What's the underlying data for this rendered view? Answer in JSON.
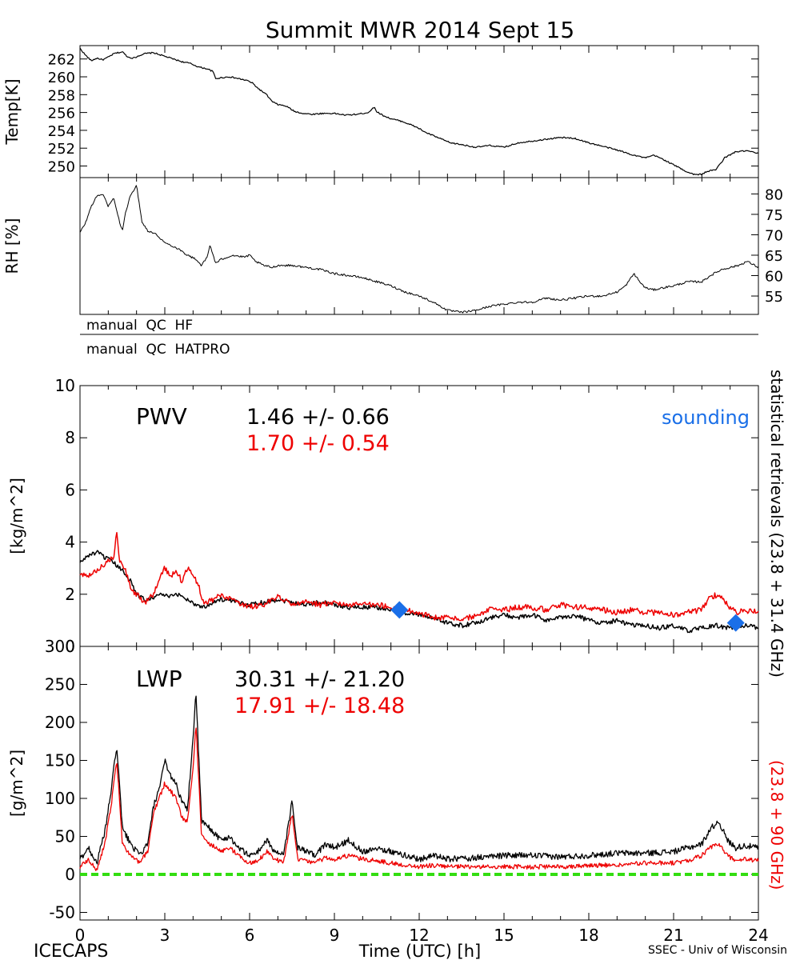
{
  "figure": {
    "title": "Summit MWR 2014 Sept 15",
    "footer_left": "ICECAPS",
    "footer_center": "Time (UTC) [h]",
    "footer_right": "SSEC - Univ of Wisconsin",
    "right_label_black": "statistical retrievals (23.8 + 31.4 GHz)",
    "right_label_red": "(23.8 + 90 GHz)"
  },
  "colors": {
    "series_black": "#000000",
    "series_red": "#ee0000",
    "sounding": "#1a6fe8",
    "zero_line": "#33dd11"
  },
  "chart_data": [
    {
      "type": "line",
      "ylabel": "Temp[K]",
      "xlim": [
        0,
        24
      ],
      "ylim": [
        248.7,
        263.5
      ],
      "yticks": [
        250,
        252,
        254,
        256,
        258,
        260,
        262
      ],
      "series": [
        {
          "x": [
            0,
            0.2,
            0.4,
            0.6,
            0.8,
            1.0,
            1.2,
            1.5,
            1.7,
            1.9,
            2.1,
            2.3,
            2.6,
            2.8,
            3.0,
            3.3,
            3.6,
            3.9,
            4.2,
            4.5,
            4.7,
            4.8,
            5.0,
            5.3,
            5.6,
            5.9,
            6.1,
            6.3,
            6.6,
            6.8,
            7.0,
            7.3,
            7.6,
            7.9,
            8.2,
            8.6,
            9.0,
            9.4,
            9.8,
            10.2,
            10.4,
            10.5,
            10.7,
            11.0,
            11.4,
            11.8,
            12.0,
            12.2,
            12.5,
            12.8,
            13.1,
            13.5,
            14.0,
            14.5,
            15.0,
            15.5,
            16.0,
            16.5,
            17.0,
            17.5,
            18.0,
            18.5,
            19.0,
            19.5,
            20.0,
            20.3,
            20.6,
            20.9,
            21.2,
            21.5,
            21.8,
            22.0,
            22.2,
            22.5,
            22.8,
            23.2,
            23.6,
            24.0
          ],
          "y": [
            263.2,
            262.4,
            261.8,
            262.1,
            261.9,
            262.2,
            262.6,
            262.8,
            262.2,
            262.1,
            262.4,
            262.6,
            262.7,
            262.5,
            262.3,
            262.0,
            261.7,
            261.5,
            261.1,
            260.9,
            260.6,
            259.8,
            259.9,
            260.0,
            259.8,
            259.6,
            259.3,
            258.7,
            258.0,
            257.2,
            256.9,
            256.7,
            256.1,
            255.9,
            255.8,
            255.9,
            255.9,
            255.7,
            255.8,
            256.0,
            256.6,
            256.1,
            255.7,
            255.3,
            255.0,
            254.5,
            254.2,
            253.8,
            253.4,
            253.0,
            252.6,
            252.4,
            252.1,
            252.3,
            252.1,
            252.6,
            252.8,
            253.0,
            253.2,
            253.1,
            252.6,
            252.2,
            251.8,
            251.3,
            250.9,
            251.2,
            250.8,
            250.3,
            249.8,
            249.3,
            249.0,
            249.1,
            249.4,
            249.6,
            250.9,
            251.6,
            251.7,
            251.4
          ]
        }
      ]
    },
    {
      "type": "line",
      "ylabel": "RH [%]",
      "xlim": [
        0,
        24
      ],
      "ylim": [
        50.5,
        84
      ],
      "yticks": [
        55,
        60,
        65,
        70,
        75,
        80
      ],
      "series": [
        {
          "x": [
            0,
            0.2,
            0.4,
            0.6,
            0.8,
            1.0,
            1.2,
            1.4,
            1.5,
            1.6,
            1.8,
            2.0,
            2.2,
            2.4,
            2.6,
            2.8,
            3.0,
            3.2,
            3.5,
            3.8,
            4.1,
            4.3,
            4.5,
            4.6,
            4.8,
            5.0,
            5.4,
            5.8,
            6.0,
            6.2,
            6.5,
            6.8,
            7.0,
            7.5,
            8.0,
            8.5,
            9.0,
            9.5,
            10.0,
            10.5,
            11.0,
            11.5,
            12.0,
            12.5,
            13.0,
            13.5,
            14.0,
            14.5,
            15.0,
            15.5,
            16.0,
            16.5,
            17.0,
            17.5,
            18.0,
            18.5,
            19.0,
            19.3,
            19.6,
            19.8,
            20.0,
            20.3,
            20.6,
            21.0,
            21.5,
            22.0,
            22.3,
            22.7,
            23.0,
            23.3,
            23.6,
            24.0
          ],
          "y": [
            70.5,
            73.0,
            77.0,
            79.5,
            80.0,
            77.0,
            79.0,
            73.0,
            71.0,
            75.0,
            80.0,
            82.0,
            73.0,
            71.0,
            70.5,
            69.5,
            68.0,
            67.5,
            66.5,
            65.0,
            64.0,
            62.5,
            64.5,
            67.5,
            63.0,
            64.0,
            65.0,
            64.5,
            65.0,
            63.5,
            62.5,
            62.0,
            62.5,
            62.5,
            62.0,
            61.5,
            60.5,
            60.0,
            59.5,
            58.5,
            57.5,
            56.0,
            55.0,
            53.5,
            51.5,
            51.0,
            51.5,
            52.5,
            53.0,
            53.5,
            53.5,
            54.5,
            54.0,
            54.5,
            55.0,
            55.0,
            56.0,
            57.5,
            60.5,
            58.5,
            57.0,
            56.5,
            57.0,
            57.5,
            58.5,
            58.5,
            60.0,
            61.5,
            62.0,
            62.5,
            63.5,
            62.0
          ]
        }
      ]
    },
    {
      "type": "line",
      "ylabel": "[kg/m^2]",
      "xlim": [
        0,
        24
      ],
      "ylim": [
        0,
        10
      ],
      "yticks": [
        0,
        2,
        4,
        6,
        8,
        10
      ],
      "annotations": [
        {
          "label": "PWV"
        },
        {
          "label": "1.46 +/-   0.66",
          "series": 0
        },
        {
          "label": "1.70 +/-   0.54",
          "series": 1
        },
        {
          "label": "sounding",
          "series": 2
        }
      ],
      "series": [
        {
          "x": [
            0,
            0.3,
            0.6,
            0.9,
            1.2,
            1.4,
            1.6,
            1.8,
            2.0,
            2.3,
            2.6,
            2.9,
            3.2,
            3.5,
            3.8,
            4.1,
            4.4,
            4.7,
            5.0,
            5.5,
            6.0,
            6.5,
            7.0,
            7.5,
            8.0,
            8.5,
            9.0,
            9.5,
            10.0,
            10.5,
            11.0,
            11.5,
            12.0,
            12.5,
            13.0,
            13.5,
            14.0,
            14.5,
            15.0,
            15.5,
            16.0,
            16.5,
            17.0,
            17.5,
            18.0,
            18.5,
            19.0,
            19.5,
            20.0,
            20.5,
            21.0,
            21.5,
            22.0,
            22.5,
            23.0,
            23.5,
            24.0
          ],
          "y": [
            3.2,
            3.5,
            3.6,
            3.4,
            3.2,
            3.0,
            2.8,
            2.5,
            2.0,
            1.8,
            1.9,
            2.0,
            1.9,
            2.0,
            1.8,
            1.6,
            1.5,
            1.7,
            1.8,
            1.7,
            1.6,
            1.7,
            1.8,
            1.7,
            1.6,
            1.7,
            1.6,
            1.5,
            1.5,
            1.5,
            1.4,
            1.3,
            1.2,
            1.1,
            0.9,
            0.8,
            0.9,
            1.1,
            1.2,
            1.1,
            1.2,
            1.0,
            1.1,
            1.2,
            1.0,
            0.9,
            1.0,
            0.8,
            0.8,
            0.7,
            0.8,
            0.6,
            0.7,
            0.8,
            0.7,
            0.8,
            0.7
          ]
        },
        {
          "x": [
            0,
            0.3,
            0.6,
            0.9,
            1.2,
            1.3,
            1.4,
            1.6,
            1.8,
            2.0,
            2.3,
            2.6,
            2.8,
            3.0,
            3.2,
            3.4,
            3.6,
            3.8,
            4.0,
            4.2,
            4.4,
            4.7,
            5.0,
            5.5,
            6.0,
            6.5,
            7.0,
            7.5,
            8.0,
            8.5,
            9.0,
            9.5,
            10.0,
            10.5,
            11.0,
            11.5,
            12.0,
            12.5,
            13.0,
            13.5,
            14.0,
            14.5,
            15.0,
            15.5,
            16.0,
            16.5,
            17.0,
            17.5,
            18.0,
            18.5,
            19.0,
            19.5,
            20.0,
            20.5,
            21.0,
            21.5,
            22.0,
            22.3,
            22.6,
            22.9,
            23.2,
            23.5,
            24.0
          ],
          "y": [
            2.8,
            2.7,
            2.9,
            3.2,
            3.4,
            4.5,
            3.3,
            3.0,
            2.2,
            2.0,
            1.7,
            2.0,
            2.6,
            3.0,
            2.7,
            2.9,
            2.5,
            3.0,
            2.8,
            2.3,
            1.6,
            1.8,
            2.0,
            1.7,
            1.5,
            1.6,
            1.9,
            1.6,
            1.7,
            1.6,
            1.7,
            1.6,
            1.6,
            1.6,
            1.5,
            1.4,
            1.3,
            1.1,
            1.1,
            1.0,
            1.2,
            1.4,
            1.4,
            1.5,
            1.5,
            1.4,
            1.6,
            1.5,
            1.5,
            1.4,
            1.3,
            1.4,
            1.3,
            1.3,
            1.2,
            1.3,
            1.4,
            1.9,
            2.0,
            1.6,
            1.3,
            1.4,
            1.3
          ]
        },
        {
          "type": "scatter",
          "x": [
            11.3,
            23.2
          ],
          "y": [
            1.4,
            0.9
          ]
        }
      ]
    },
    {
      "type": "line",
      "ylabel": "[g/m^2]",
      "xlabel": "Time (UTC) [h]",
      "xlim": [
        0,
        24
      ],
      "ylim": [
        -60,
        300
      ],
      "yticks": [
        -50,
        0,
        50,
        100,
        150,
        200,
        250,
        300
      ],
      "xticks": [
        0,
        3,
        6,
        9,
        12,
        15,
        18,
        21,
        24
      ],
      "annotations": [
        {
          "label": "LWP"
        },
        {
          "label": "30.31 +/-   21.20",
          "series": 0
        },
        {
          "label": "17.91 +/-   18.48",
          "series": 1
        }
      ],
      "series": [
        {
          "x": [
            0,
            0.3,
            0.6,
            0.9,
            1.1,
            1.3,
            1.5,
            1.8,
            2.1,
            2.4,
            2.6,
            2.8,
            3.0,
            3.2,
            3.4,
            3.6,
            3.8,
            4.0,
            4.1,
            4.3,
            4.6,
            5.0,
            5.3,
            5.6,
            6.0,
            6.3,
            6.6,
            6.9,
            7.2,
            7.5,
            7.7,
            8.0,
            8.3,
            8.7,
            9.0,
            9.5,
            10.0,
            10.5,
            11.0,
            11.5,
            12.0,
            12.5,
            13.0,
            14.0,
            15.0,
            16.0,
            17.0,
            18.0,
            19.0,
            20.0,
            21.0,
            21.5,
            22.0,
            22.3,
            22.6,
            22.9,
            23.2,
            23.5,
            24.0
          ],
          "y": [
            20,
            35,
            15,
            60,
            110,
            170,
            60,
            40,
            25,
            40,
            90,
            110,
            150,
            130,
            120,
            95,
            85,
            180,
            240,
            70,
            60,
            45,
            50,
            35,
            25,
            30,
            45,
            30,
            25,
            95,
            35,
            30,
            25,
            40,
            35,
            45,
            30,
            35,
            30,
            25,
            20,
            25,
            20,
            22,
            25,
            25,
            23,
            25,
            28,
            28,
            30,
            35,
            40,
            60,
            70,
            45,
            35,
            38,
            35
          ]
        },
        {
          "x": [
            0,
            0.3,
            0.6,
            0.9,
            1.1,
            1.3,
            1.5,
            1.8,
            2.1,
            2.4,
            2.6,
            2.8,
            3.0,
            3.2,
            3.4,
            3.6,
            3.8,
            4.0,
            4.1,
            4.3,
            4.6,
            5.0,
            5.3,
            5.6,
            6.0,
            6.3,
            6.6,
            6.9,
            7.2,
            7.5,
            7.7,
            8.0,
            8.3,
            8.7,
            9.0,
            9.5,
            10.0,
            10.5,
            11.0,
            11.5,
            12.0,
            12.5,
            13.0,
            14.0,
            15.0,
            16.0,
            17.0,
            18.0,
            19.0,
            20.0,
            21.0,
            21.5,
            22.0,
            22.3,
            22.6,
            22.9,
            23.2,
            23.5,
            24.0
          ],
          "y": [
            10,
            20,
            5,
            45,
            90,
            150,
            40,
            25,
            15,
            30,
            80,
            100,
            120,
            110,
            100,
            75,
            70,
            140,
            200,
            50,
            40,
            30,
            35,
            25,
            15,
            18,
            30,
            20,
            15,
            80,
            20,
            18,
            15,
            22,
            20,
            25,
            20,
            18,
            15,
            12,
            10,
            12,
            10,
            10,
            10,
            10,
            10,
            12,
            12,
            15,
            15,
            18,
            25,
            35,
            40,
            25,
            18,
            20,
            18
          ]
        }
      ]
    }
  ],
  "qc_labels": [
    "manual  QC  HF",
    "manual  QC  HATPRO"
  ]
}
